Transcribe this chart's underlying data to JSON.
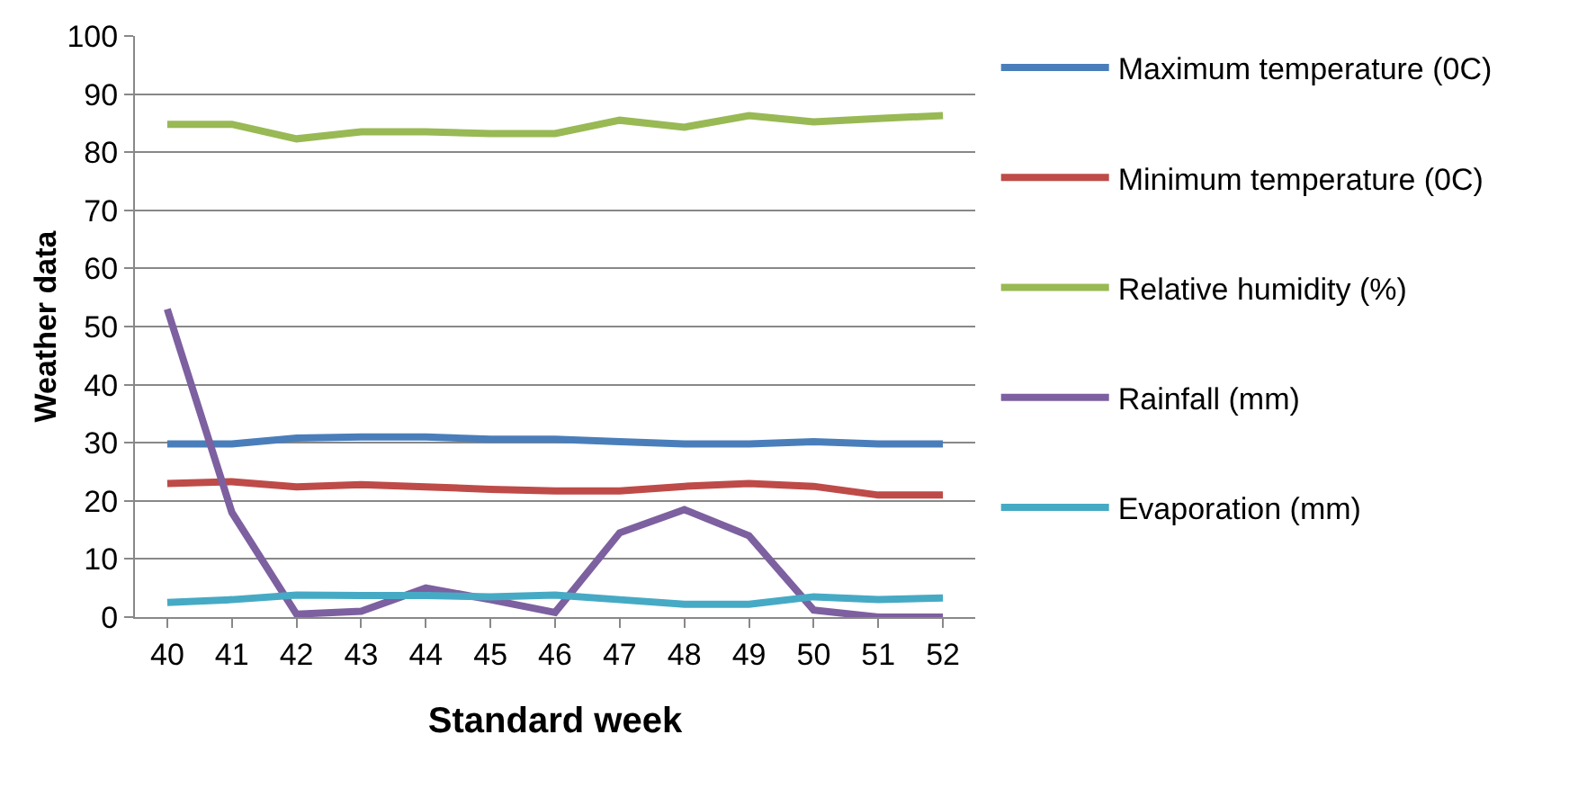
{
  "chart_data": {
    "type": "line",
    "xlabel": "Standard week",
    "ylabel": "Weather data",
    "categories": [
      "40",
      "41",
      "42",
      "43",
      "44",
      "45",
      "46",
      "47",
      "48",
      "49",
      "50",
      "51",
      "52"
    ],
    "series": [
      {
        "name": "Maximum temperature (0C)",
        "color": "#4a7ebb",
        "values": [
          29.8,
          29.8,
          30.8,
          31,
          31,
          30.6,
          30.6,
          30.2,
          29.8,
          29.8,
          30.2,
          29.8,
          29.8
        ]
      },
      {
        "name": "Minimum temperature (0C)",
        "color": "#be4b48",
        "values": [
          23,
          23.3,
          22.4,
          22.8,
          22.4,
          22,
          21.7,
          21.7,
          22.5,
          23,
          22.5,
          21,
          21
        ]
      },
      {
        "name": "Relative humidity (%)",
        "color": "#98b954",
        "values": [
          84.8,
          84.8,
          82.3,
          83.5,
          83.5,
          83.2,
          83.2,
          85.5,
          84.3,
          86.3,
          85.2,
          85.8,
          86.3
        ]
      },
      {
        "name": "Rainfall (mm)",
        "color": "#7d60a0",
        "values": [
          53,
          18,
          0.5,
          1,
          5,
          3,
          0.8,
          14.5,
          18.5,
          14,
          1.2,
          0,
          0
        ]
      },
      {
        "name": "Evaporation (mm)",
        "color": "#46aac5",
        "values": [
          2.5,
          3,
          3.8,
          3.7,
          3.7,
          3.5,
          3.8,
          3,
          2.2,
          2.2,
          3.5,
          3,
          3.3
        ]
      }
    ],
    "ylim": [
      0,
      100
    ],
    "yticks": [
      0,
      10,
      20,
      30,
      40,
      50,
      60,
      70,
      80,
      90,
      100
    ],
    "grid": "y",
    "legend": "right",
    "marker": "none",
    "line_style": "solid"
  }
}
